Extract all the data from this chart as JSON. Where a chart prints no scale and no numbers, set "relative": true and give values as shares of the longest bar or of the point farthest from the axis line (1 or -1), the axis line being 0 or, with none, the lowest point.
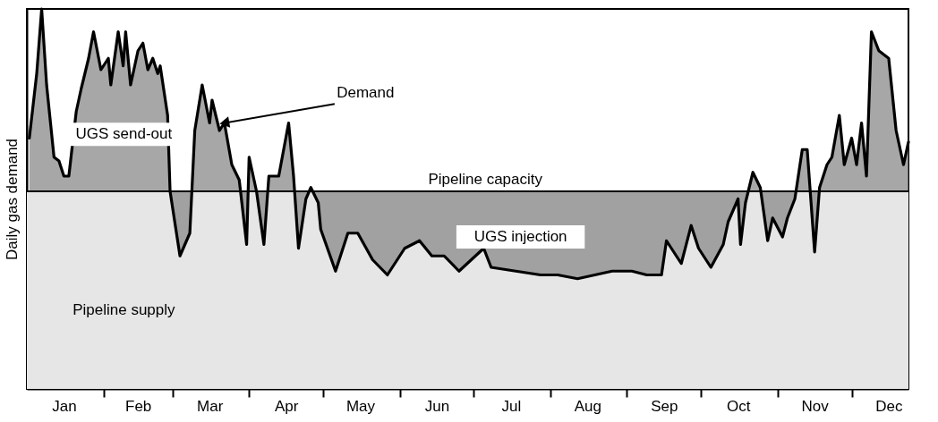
{
  "chart_data": {
    "type": "line",
    "ylabel": "Daily gas demand",
    "relative": true,
    "grid": false,
    "line_style": "solid",
    "xlim": [
      "--01-01",
      "--12-24"
    ],
    "xticks": [
      {
        "value": "--01-16",
        "label": "Jan"
      },
      {
        "value": "--02-01",
        "label": null
      },
      {
        "value": "--02-15",
        "label": "Feb"
      },
      {
        "value": "--03-01",
        "label": null
      },
      {
        "value": "--03-16",
        "label": "Mar"
      },
      {
        "value": "--04-01",
        "label": null
      },
      {
        "value": "--04-16",
        "label": "Apr"
      },
      {
        "value": "--05-01",
        "label": null
      },
      {
        "value": "--05-16",
        "label": "May"
      },
      {
        "value": "--06-01",
        "label": null
      },
      {
        "value": "--06-16",
        "label": "Jun"
      },
      {
        "value": "--07-01",
        "label": null
      },
      {
        "value": "--07-16",
        "label": "Jul"
      },
      {
        "value": "--08-01",
        "label": null
      },
      {
        "value": "--08-16",
        "label": "Aug"
      },
      {
        "value": "--09-01",
        "label": null
      },
      {
        "value": "--09-16",
        "label": "Sep"
      },
      {
        "value": "--10-01",
        "label": null
      },
      {
        "value": "--10-16",
        "label": "Oct"
      },
      {
        "value": "--11-01",
        "label": null
      },
      {
        "value": "--11-16",
        "label": "Nov"
      },
      {
        "value": "--12-01",
        "label": null
      },
      {
        "value": "--12-16",
        "label": "Dec"
      }
    ],
    "x": [
      "--01-02",
      "--01-05",
      "--01-07",
      "--01-09",
      "--01-12",
      "--01-14",
      "--01-16",
      "--01-18",
      "--01-21",
      "--01-23",
      "--01-26",
      "--01-28",
      "--01-31",
      "--02-03",
      "--02-04",
      "--02-07",
      "--02-09",
      "--02-10",
      "--02-12",
      "--02-15",
      "--02-17",
      "--02-19",
      "--02-21",
      "--02-23",
      "--02-24",
      "--02-27",
      "--02-28",
      "--03-04",
      "--03-08",
      "--03-10",
      "--03-13",
      "--03-16",
      "--03-17",
      "--03-20",
      "--03-22",
      "--03-25",
      "--03-28",
      "--03-31",
      "--04-01",
      "--04-04",
      "--04-07",
      "--04-09",
      "--04-13",
      "--04-17",
      "--04-19",
      "--04-21",
      "--04-24",
      "--04-26",
      "--04-29",
      "--04-30",
      "--05-06",
      "--05-11",
      "--05-15",
      "--05-21",
      "--05-27",
      "--06-03",
      "--06-09",
      "--06-14",
      "--06-19",
      "--06-25",
      "--06-30",
      "--07-05",
      "--07-08",
      "--07-18",
      "--07-28",
      "--08-04",
      "--08-12",
      "--08-19",
      "--08-26",
      "--09-03",
      "--09-09",
      "--09-15",
      "--09-17",
      "--09-23",
      "--09-27",
      "--09-30",
      "--10-05",
      "--10-10",
      "--10-12",
      "--10-16",
      "--10-17",
      "--10-19",
      "--10-22",
      "--10-25",
      "--10-28",
      "--10-30",
      "--11-03",
      "--11-05",
      "--11-08",
      "--11-11",
      "--11-13",
      "--11-16",
      "--11-18",
      "--11-21",
      "--11-23",
      "--11-26",
      "--11-28",
      "--12-01",
      "--12-03",
      "--12-05",
      "--12-07",
      "--12-09",
      "--12-12",
      "--12-16",
      "--12-19",
      "--12-22",
      "--12-24"
    ],
    "series": [
      {
        "color": "#000000",
        "values": [
          0.66,
          0.83,
          1,
          0.8,
          0.61,
          0.6,
          0.56,
          0.56,
          0.73,
          0.79,
          0.87,
          0.94,
          0.84,
          0.87,
          0.8,
          0.94,
          0.85,
          0.94,
          0.8,
          0.89,
          0.91,
          0.84,
          0.87,
          0.83,
          0.85,
          0.72,
          0.52,
          0.35,
          0.41,
          0.68,
          0.8,
          0.7,
          0.76,
          0.68,
          0.7,
          0.59,
          0.55,
          0.38,
          0.61,
          0.52,
          0.38,
          0.56,
          0.56,
          0.7,
          0.56,
          0.37,
          0.5,
          0.53,
          0.49,
          0.42,
          0.31,
          0.41,
          0.41,
          0.34,
          0.3,
          0.37,
          0.39,
          0.35,
          0.35,
          0.31,
          0.34,
          0.37,
          0.32,
          0.31,
          0.3,
          0.3,
          0.29,
          0.3,
          0.31,
          0.31,
          0.3,
          0.3,
          0.39,
          0.33,
          0.43,
          0.37,
          0.32,
          0.38,
          0.44,
          0.5,
          0.38,
          0.49,
          0.57,
          0.53,
          0.39,
          0.45,
          0.4,
          0.45,
          0.5,
          0.63,
          0.63,
          0.36,
          0.53,
          0.59,
          0.61,
          0.72,
          0.59,
          0.66,
          0.59,
          0.7,
          0.56,
          0.94,
          0.89,
          0.87,
          0.68,
          0.59,
          0.65
        ]
      }
    ],
    "ref_lines": [
      {
        "axis": "y",
        "value": 0.52,
        "label": "Pipeline capacity",
        "color": "#000000"
      }
    ],
    "bands": [
      {
        "axis": "y",
        "from": 0,
        "to": 0.52,
        "label": "Pipeline supply",
        "color": "#e6e6e6"
      }
    ],
    "annotations": [
      {
        "text": "Demand",
        "x": "--03-22",
        "y": 0.7
      },
      "UGS send-out",
      "UGS injection"
    ]
  }
}
